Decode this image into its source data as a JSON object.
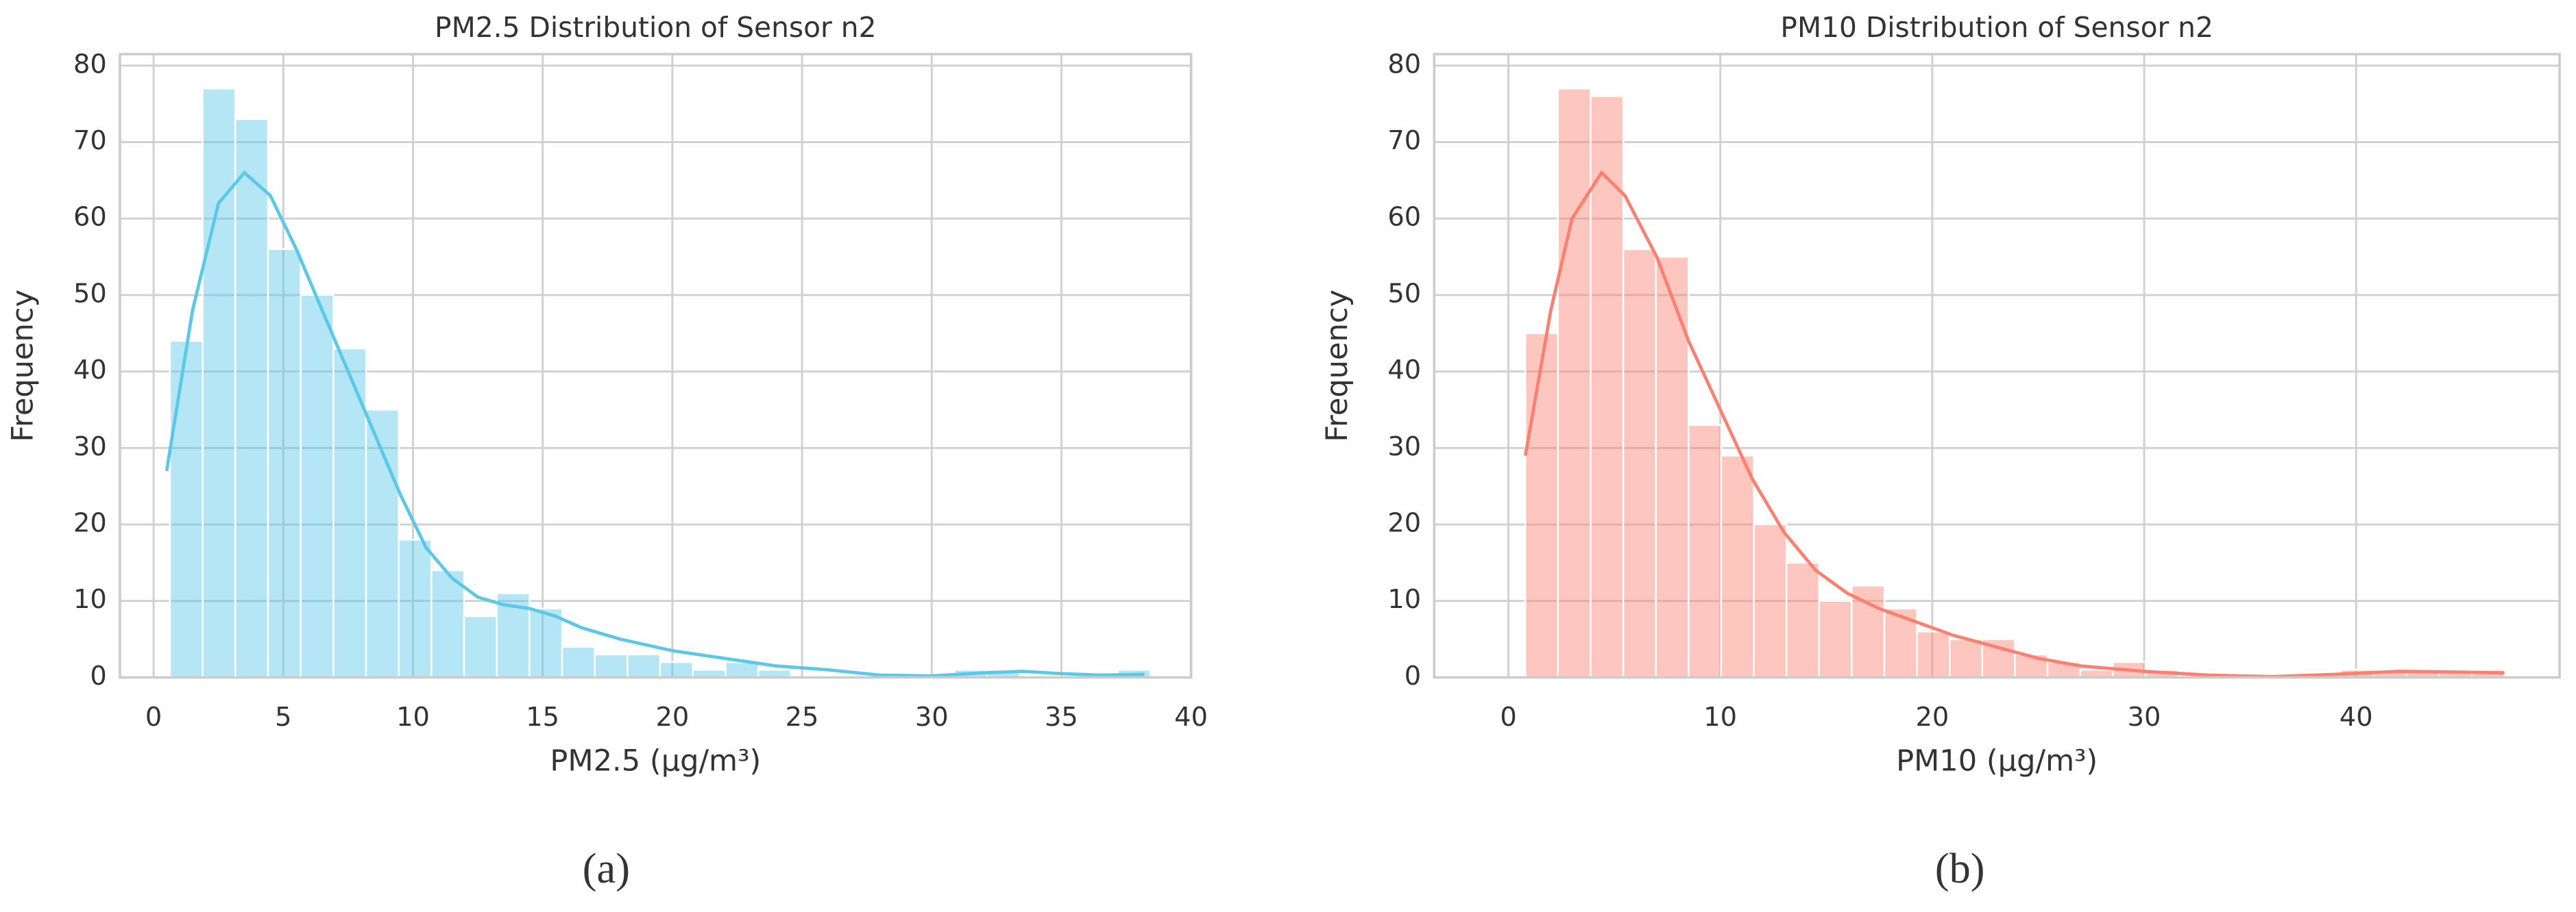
{
  "chart_data": [
    {
      "type": "histogram",
      "title": "PM2.5 Distribution of Sensor n2",
      "xlabel": "PM2.5 (µg/m³)",
      "ylabel": "Frequency",
      "caption": "(a)",
      "color": "#5bc8e8",
      "bins": [
        0.63,
        1.89,
        3.15,
        4.41,
        5.67,
        6.93,
        8.19,
        9.45,
        10.71,
        11.97,
        13.23,
        14.49,
        15.75,
        17.01,
        18.27,
        19.53,
        20.79,
        22.05,
        23.31,
        24.57,
        25.83,
        27.09,
        28.35,
        29.61,
        30.87,
        32.13,
        33.39,
        34.65,
        35.91,
        37.17,
        38.43
      ],
      "values": [
        44,
        77,
        73,
        56,
        50,
        43,
        35,
        18,
        14,
        8,
        11,
        9,
        4,
        3,
        3,
        2,
        1,
        2,
        1,
        0,
        0,
        0,
        0,
        0,
        1,
        1,
        0,
        0,
        0,
        1
      ],
      "kde": {
        "x": [
          0.5,
          1.5,
          2.5,
          3.5,
          4.5,
          5.5,
          6.5,
          7.5,
          8.5,
          9.5,
          10.5,
          11.5,
          12.5,
          13.5,
          14.5,
          15.5,
          16.5,
          18,
          20,
          22,
          24,
          26,
          28,
          30,
          32,
          33.5,
          35,
          36.5,
          38.2
        ],
        "y": [
          27,
          48,
          62,
          66,
          63,
          56,
          48,
          40,
          32,
          24,
          17,
          13,
          10.5,
          9.5,
          9,
          8,
          6.5,
          5,
          3.5,
          2.5,
          1.5,
          1,
          0.3,
          0.2,
          0.6,
          0.8,
          0.5,
          0.3,
          0.4
        ]
      },
      "xlim": [
        -1.3,
        40
      ],
      "ylim": [
        0,
        81.5
      ],
      "xticks": [
        0,
        5,
        10,
        15,
        20,
        25,
        30,
        35,
        40
      ],
      "yticks": [
        0,
        10,
        20,
        30,
        40,
        50,
        60,
        70,
        80
      ],
      "grid": true
    },
    {
      "type": "histogram",
      "title": "PM10 Distribution of Sensor n2",
      "xlabel": "PM10 (µg/m³)",
      "ylabel": "Frequency",
      "caption": "(b)",
      "color": "#fa8072",
      "bins": [
        0.8,
        2.34,
        3.88,
        5.42,
        6.96,
        8.5,
        10.04,
        11.58,
        13.12,
        14.66,
        16.2,
        17.74,
        19.28,
        20.82,
        22.36,
        23.9,
        25.44,
        26.98,
        28.52,
        30.06,
        31.6,
        33.14,
        34.68,
        36.22,
        37.76,
        39.3,
        40.84,
        42.38,
        43.92,
        45.46,
        47.0
      ],
      "values": [
        45,
        77,
        76,
        56,
        55,
        33,
        29,
        20,
        15,
        10,
        12,
        9,
        6,
        5,
        5,
        3,
        2,
        1,
        2,
        1,
        0,
        0,
        0,
        0,
        0,
        1,
        1,
        1,
        1,
        1
      ],
      "kde": {
        "x": [
          0.8,
          2,
          3,
          4.4,
          5.5,
          7,
          8.5,
          10,
          11.5,
          13,
          14.5,
          16,
          17.5,
          19,
          21,
          23,
          25,
          27,
          30,
          33,
          36,
          39,
          42,
          45,
          47
        ],
        "y": [
          29,
          48,
          60,
          66,
          63,
          55,
          44,
          35,
          26,
          19,
          14,
          11,
          9,
          7.5,
          5.5,
          4,
          2.5,
          1.5,
          0.8,
          0.3,
          0.1,
          0.4,
          0.8,
          0.7,
          0.6
        ]
      },
      "xlim": [
        -3.5,
        49.6
      ],
      "ylim": [
        0,
        81.5
      ],
      "xticks": [
        0,
        10,
        20,
        30,
        40
      ],
      "yticks": [
        0,
        10,
        20,
        30,
        40,
        50,
        60,
        70,
        80
      ],
      "grid": true
    }
  ]
}
